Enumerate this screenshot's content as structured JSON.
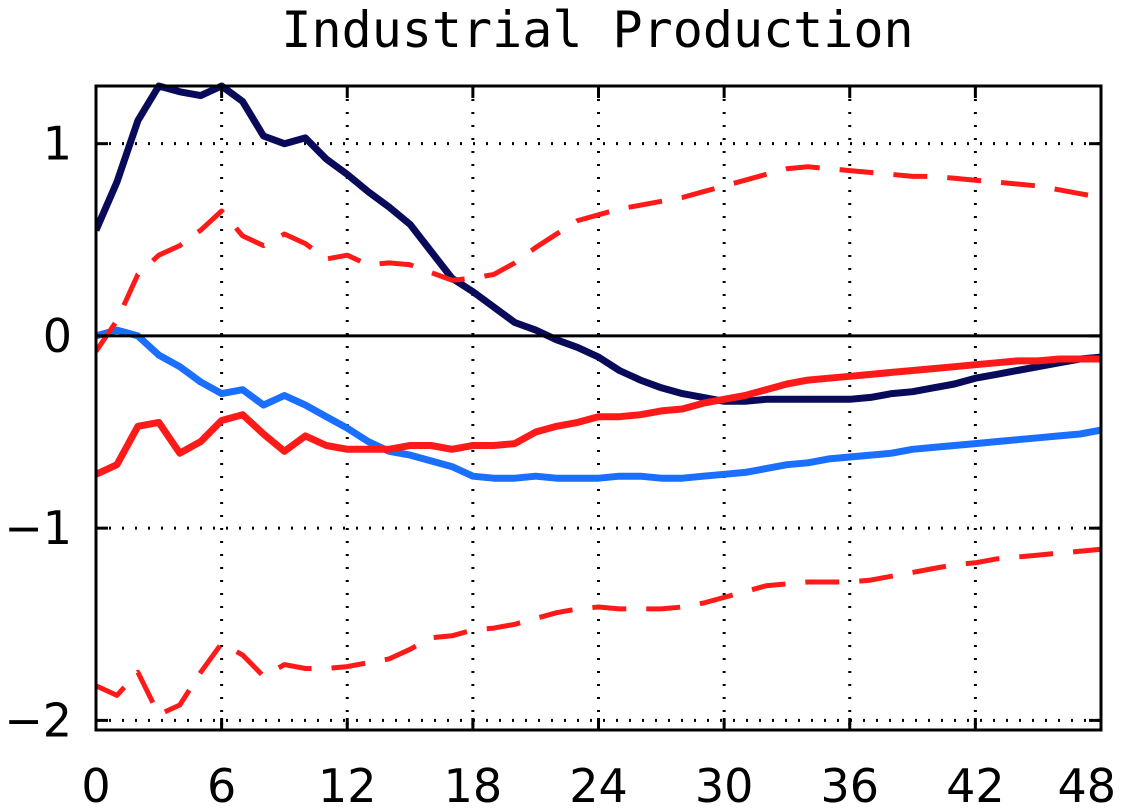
{
  "chart_data": {
    "type": "line",
    "title": "Industrial Production",
    "xlabel": "",
    "ylabel": "",
    "xlim": [
      0,
      48
    ],
    "ylim": [
      -2.05,
      1.3
    ],
    "xticks": [
      0,
      6,
      12,
      18,
      24,
      30,
      36,
      42,
      48
    ],
    "xtick_labels": [
      "0",
      "6",
      "12",
      "18",
      "24",
      "30",
      "36",
      "42",
      "48"
    ],
    "yticks": [
      -2,
      -1,
      0,
      1
    ],
    "ytick_labels": [
      "−2",
      "−1",
      "0",
      "1"
    ],
    "grid": true,
    "grid_style": "dotted",
    "zero_line": true,
    "legend": "none",
    "series": [
      {
        "color": "#0a0a5a",
        "style": "solid",
        "x": [
          0,
          1,
          2,
          3,
          4,
          5,
          6,
          7,
          8,
          9,
          10,
          11,
          12,
          13,
          14,
          15,
          16,
          17,
          18,
          19,
          20,
          21,
          22,
          23,
          24,
          25,
          26,
          27,
          28,
          29,
          30,
          31,
          32,
          33,
          34,
          35,
          36,
          37,
          38,
          39,
          40,
          41,
          42,
          43,
          44,
          45,
          46,
          47,
          48
        ],
        "y": [
          0.55,
          0.8,
          1.12,
          1.3,
          1.27,
          1.25,
          1.3,
          1.22,
          1.04,
          1.0,
          1.03,
          0.92,
          0.84,
          0.75,
          0.67,
          0.58,
          0.44,
          0.3,
          0.23,
          0.15,
          0.07,
          0.03,
          -0.02,
          -0.06,
          -0.11,
          -0.18,
          -0.23,
          -0.27,
          -0.3,
          -0.32,
          -0.34,
          -0.34,
          -0.33,
          -0.33,
          -0.33,
          -0.33,
          -0.33,
          -0.32,
          -0.3,
          -0.29,
          -0.27,
          -0.25,
          -0.22,
          -0.2,
          -0.18,
          -0.16,
          -0.14,
          -0.12,
          -0.11
        ]
      },
      {
        "color": "#1a6fff",
        "style": "solid",
        "x": [
          0,
          1,
          2,
          3,
          4,
          5,
          6,
          7,
          8,
          9,
          10,
          11,
          12,
          13,
          14,
          15,
          16,
          17,
          18,
          19,
          20,
          21,
          22,
          23,
          24,
          25,
          26,
          27,
          28,
          29,
          30,
          31,
          32,
          33,
          34,
          35,
          36,
          37,
          38,
          39,
          40,
          41,
          42,
          43,
          44,
          45,
          46,
          47,
          48
        ],
        "y": [
          0.0,
          0.03,
          0.0,
          -0.1,
          -0.16,
          -0.24,
          -0.3,
          -0.28,
          -0.36,
          -0.31,
          -0.36,
          -0.42,
          -0.48,
          -0.55,
          -0.6,
          -0.62,
          -0.65,
          -0.68,
          -0.73,
          -0.74,
          -0.74,
          -0.73,
          -0.74,
          -0.74,
          -0.74,
          -0.73,
          -0.73,
          -0.74,
          -0.74,
          -0.73,
          -0.72,
          -0.71,
          -0.69,
          -0.67,
          -0.66,
          -0.64,
          -0.63,
          -0.62,
          -0.61,
          -0.59,
          -0.58,
          -0.57,
          -0.56,
          -0.55,
          -0.54,
          -0.53,
          -0.52,
          -0.51,
          -0.49
        ]
      },
      {
        "color": "#ff1a1a",
        "style": "solid",
        "x": [
          0,
          1,
          2,
          3,
          4,
          5,
          6,
          7,
          8,
          9,
          10,
          11,
          12,
          13,
          14,
          15,
          16,
          17,
          18,
          19,
          20,
          21,
          22,
          23,
          24,
          25,
          26,
          27,
          28,
          29,
          30,
          31,
          32,
          33,
          34,
          35,
          36,
          37,
          38,
          39,
          40,
          41,
          42,
          43,
          44,
          45,
          46,
          47,
          48
        ],
        "y": [
          -0.72,
          -0.67,
          -0.47,
          -0.45,
          -0.61,
          -0.55,
          -0.44,
          -0.41,
          -0.51,
          -0.6,
          -0.52,
          -0.57,
          -0.59,
          -0.59,
          -0.59,
          -0.57,
          -0.57,
          -0.59,
          -0.57,
          -0.57,
          -0.56,
          -0.5,
          -0.47,
          -0.45,
          -0.42,
          -0.42,
          -0.41,
          -0.39,
          -0.38,
          -0.35,
          -0.33,
          -0.31,
          -0.28,
          -0.25,
          -0.23,
          -0.22,
          -0.21,
          -0.2,
          -0.19,
          -0.18,
          -0.17,
          -0.16,
          -0.15,
          -0.14,
          -0.13,
          -0.13,
          -0.12,
          -0.12,
          -0.12
        ]
      },
      {
        "color": "#ff1a1a",
        "style": "dashed",
        "x": [
          0,
          1,
          2,
          3,
          4,
          5,
          6,
          7,
          8,
          9,
          10,
          11,
          12,
          13,
          14,
          15,
          16,
          17,
          18,
          19,
          20,
          21,
          22,
          23,
          24,
          25,
          26,
          27,
          28,
          29,
          30,
          31,
          32,
          33,
          34,
          35,
          36,
          37,
          38,
          39,
          40,
          41,
          42,
          43,
          44,
          45,
          46,
          47,
          48
        ],
        "y": [
          -0.08,
          0.08,
          0.32,
          0.42,
          0.47,
          0.55,
          0.65,
          0.52,
          0.47,
          0.53,
          0.48,
          0.4,
          0.42,
          0.37,
          0.38,
          0.37,
          0.33,
          0.29,
          0.3,
          0.32,
          0.38,
          0.46,
          0.53,
          0.6,
          0.63,
          0.66,
          0.68,
          0.7,
          0.72,
          0.75,
          0.78,
          0.81,
          0.84,
          0.87,
          0.88,
          0.87,
          0.86,
          0.85,
          0.84,
          0.83,
          0.83,
          0.82,
          0.81,
          0.8,
          0.79,
          0.78,
          0.76,
          0.74,
          0.72
        ]
      },
      {
        "color": "#ff1a1a",
        "style": "dashed",
        "x": [
          0,
          1,
          2,
          3,
          4,
          5,
          6,
          7,
          8,
          9,
          10,
          11,
          12,
          13,
          14,
          15,
          16,
          17,
          18,
          19,
          20,
          21,
          22,
          23,
          24,
          25,
          26,
          27,
          28,
          29,
          30,
          31,
          32,
          33,
          34,
          35,
          36,
          37,
          38,
          39,
          40,
          41,
          42,
          43,
          44,
          45,
          46,
          47,
          48
        ],
        "y": [
          -1.82,
          -1.87,
          -1.75,
          -1.97,
          -1.92,
          -1.75,
          -1.6,
          -1.66,
          -1.77,
          -1.71,
          -1.73,
          -1.73,
          -1.72,
          -1.7,
          -1.68,
          -1.63,
          -1.57,
          -1.56,
          -1.53,
          -1.52,
          -1.5,
          -1.47,
          -1.44,
          -1.42,
          -1.41,
          -1.42,
          -1.42,
          -1.42,
          -1.41,
          -1.39,
          -1.36,
          -1.33,
          -1.3,
          -1.29,
          -1.28,
          -1.28,
          -1.28,
          -1.27,
          -1.25,
          -1.23,
          -1.21,
          -1.19,
          -1.18,
          -1.16,
          -1.15,
          -1.14,
          -1.13,
          -1.12,
          -1.11
        ]
      }
    ]
  }
}
